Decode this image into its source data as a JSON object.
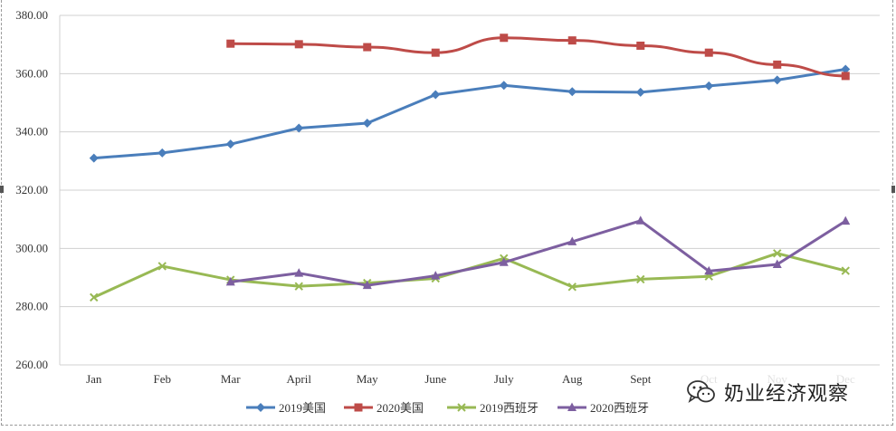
{
  "chart_data": {
    "type": "line",
    "title": "",
    "xlabel": "",
    "ylabel": "",
    "categories": [
      "Jan",
      "Feb",
      "Mar",
      "April",
      "May",
      "June",
      "July",
      "Aug",
      "Sept",
      "Oct",
      "Nov",
      "Dec"
    ],
    "ylim": [
      260,
      380
    ],
    "yticks": [
      "260.00",
      "280.00",
      "300.00",
      "320.00",
      "340.00",
      "360.00",
      "380.00"
    ],
    "grid": true,
    "legend_position": "bottom",
    "series": [
      {
        "name": "2019美国",
        "color": "#4a7ebb",
        "marker": "diamond",
        "values": [
          331.0,
          332.8,
          335.8,
          341.3,
          343.0,
          352.8,
          356.0,
          353.8,
          353.6,
          355.8,
          357.8,
          361.5
        ]
      },
      {
        "name": "2020美国",
        "color": "#be4b48",
        "marker": "square",
        "values": [
          null,
          null,
          370.3,
          370.1,
          369.1,
          367.2,
          372.3,
          371.4,
          369.6,
          367.2,
          363.1,
          359.2
        ]
      },
      {
        "name": "2019西班牙",
        "color": "#98b954",
        "marker": "x",
        "values": [
          283.2,
          293.9,
          289.2,
          287.0,
          288.1,
          289.7,
          296.6,
          286.8,
          289.4,
          290.4,
          298.3,
          292.3
        ]
      },
      {
        "name": "2020西班牙",
        "color": "#7d5fa0",
        "marker": "triangle",
        "values": [
          null,
          null,
          288.5,
          291.5,
          287.3,
          290.6,
          295.2,
          302.3,
          309.5,
          292.2,
          294.5,
          309.4
        ]
      }
    ]
  },
  "watermark": {
    "text": "奶业经济观察",
    "icon": "wechat-icon"
  }
}
